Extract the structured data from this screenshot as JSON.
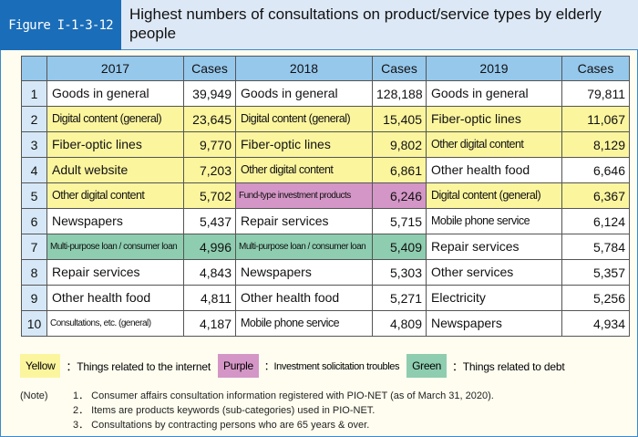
{
  "header": {
    "figure": "Figure I-1-3-12",
    "title": "Highest numbers of consultations on product/service types by elderly people"
  },
  "colors": {
    "yellow": "#fbf59e",
    "purple": "#d496c6",
    "green": "#8ecdb0",
    "header": "#96c8ec",
    "frame": "#1a6db8"
  },
  "chart_data": {
    "type": "table",
    "columns": [
      "",
      "2017",
      "Cases",
      "2018",
      "Cases",
      "2019",
      "Cases"
    ],
    "rows": [
      {
        "rank": "1",
        "y2017": {
          "item": "Goods in general",
          "cases": "39,949"
        },
        "y2018": {
          "item": "Goods in general",
          "cases": "128,188"
        },
        "y2019": {
          "item": "Goods in general",
          "cases": "79,811"
        }
      },
      {
        "rank": "2",
        "y2017": {
          "item": "Digital content (general)",
          "cases": "23,645",
          "color": "yellow"
        },
        "y2018": {
          "item": "Digital content (general)",
          "cases": "15,405",
          "color": "yellow"
        },
        "y2019": {
          "item": "Fiber-optic lines",
          "cases": "11,067",
          "color": "yellow"
        }
      },
      {
        "rank": "3",
        "y2017": {
          "item": "Fiber-optic lines",
          "cases": "9,770",
          "color": "yellow"
        },
        "y2018": {
          "item": "Fiber-optic lines",
          "cases": "9,802",
          "color": "yellow"
        },
        "y2019": {
          "item": "Other digital content",
          "cases": "8,129",
          "color": "yellow"
        }
      },
      {
        "rank": "4",
        "y2017": {
          "item": "Adult website",
          "cases": "7,203",
          "color": "yellow"
        },
        "y2018": {
          "item": "Other digital content",
          "cases": "6,861",
          "color": "yellow"
        },
        "y2019": {
          "item": "Other health food",
          "cases": "6,646"
        }
      },
      {
        "rank": "5",
        "y2017": {
          "item": "Other digital content",
          "cases": "5,702",
          "color": "yellow"
        },
        "y2018": {
          "item": "Fund-type investment products",
          "cases": "6,246",
          "color": "purple"
        },
        "y2019": {
          "item": "Digital content (general)",
          "cases": "6,367",
          "color": "yellow"
        }
      },
      {
        "rank": "6",
        "y2017": {
          "item": "Newspapers",
          "cases": "5,437"
        },
        "y2018": {
          "item": "Repair services",
          "cases": "5,715"
        },
        "y2019": {
          "item": "Mobile phone service",
          "cases": "6,124"
        }
      },
      {
        "rank": "7",
        "y2017": {
          "item": "Multi-purpose loan / consumer loan",
          "cases": "4,996",
          "color": "green"
        },
        "y2018": {
          "item": "Multi-purpose loan / consumer loan",
          "cases": "5,409",
          "color": "green"
        },
        "y2019": {
          "item": "Repair services",
          "cases": "5,784"
        }
      },
      {
        "rank": "8",
        "y2017": {
          "item": "Repair services",
          "cases": "4,843"
        },
        "y2018": {
          "item": "Newspapers",
          "cases": "5,303"
        },
        "y2019": {
          "item": "Other services",
          "cases": "5,357"
        }
      },
      {
        "rank": "9",
        "y2017": {
          "item": "Other health food",
          "cases": "4,811"
        },
        "y2018": {
          "item": "Other health food",
          "cases": "5,271"
        },
        "y2019": {
          "item": "Electricity",
          "cases": "5,256"
        }
      },
      {
        "rank": "10",
        "y2017": {
          "item": "Consultations, etc. (general)",
          "cases": "4,187"
        },
        "y2018": {
          "item": "Mobile phone service",
          "cases": "4,809"
        },
        "y2019": {
          "item": "Newspapers",
          "cases": "4,934"
        }
      }
    ]
  },
  "legend": [
    {
      "swatch": "Yellow",
      "color": "yellow",
      "text": "：Things related to the internet"
    },
    {
      "swatch": "Purple",
      "color": "purple",
      "text": "：Investment solicitation troubles"
    },
    {
      "swatch": "Green",
      "color": "green",
      "text": "：Things related to debt"
    }
  ],
  "notes": {
    "label": "(Note)",
    "items": [
      "1． Consumer affairs consultation information registered with PIO-NET (as of March 31, 2020).",
      "2． Items are products keywords (sub-categories) used in PIO-NET.",
      "3． Consultations by contracting persons who are 65 years & over."
    ]
  }
}
